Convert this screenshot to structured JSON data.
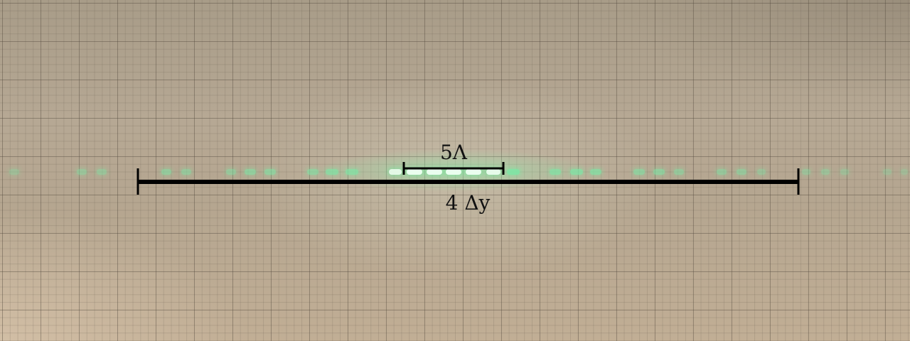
{
  "annotations": {
    "small_bar_label": "5Λ",
    "large_bar_label": "4 Δy"
  },
  "colors": {
    "fringe": "#7de8a6",
    "fringe_core": "#eaffef",
    "bar": "#000000",
    "paper": "#b3a48f"
  }
}
